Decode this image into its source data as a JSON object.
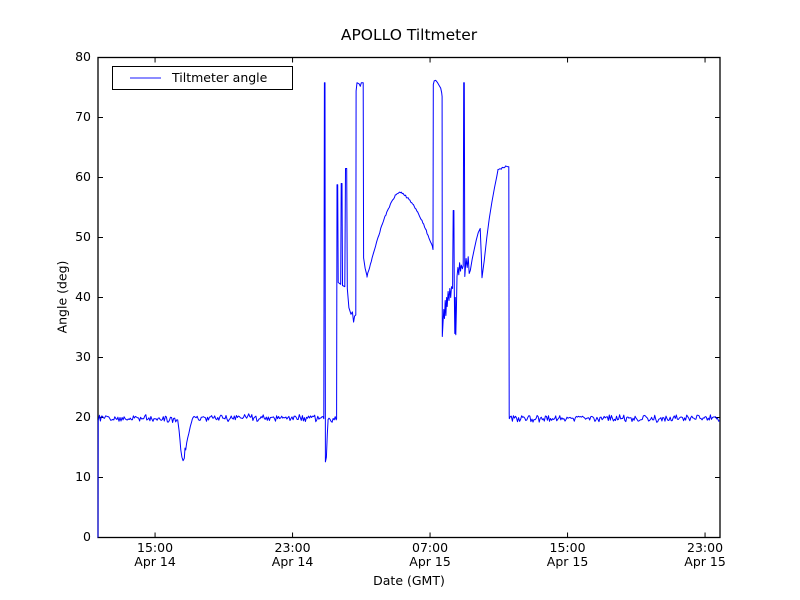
{
  "chart_data": {
    "type": "line",
    "title": "APOLLO Tiltmeter",
    "xlabel": "Date (GMT)",
    "ylabel": "Angle (deg)",
    "legend": {
      "label": "Tiltmeter angle",
      "position": "upper left"
    },
    "line_color": "#0000ff",
    "frame_color": "#000000",
    "background": "#ffffff",
    "grid": false,
    "x_unit": "hours since Apr 14 00:00 GMT",
    "xlim": [
      11.68,
      47.87
    ],
    "ylim": [
      0,
      80
    ],
    "yticks": {
      "values": [
        0,
        10,
        20,
        30,
        40,
        50,
        60,
        70,
        80
      ],
      "labels": [
        "0",
        "10",
        "20",
        "30",
        "40",
        "50",
        "60",
        "70",
        "80"
      ]
    },
    "xticks": {
      "values": [
        15,
        23,
        31,
        39,
        47
      ],
      "time_labels": [
        "15:00",
        "23:00",
        "07:00",
        "15:00",
        "23:00"
      ],
      "date_labels": [
        "Apr 14",
        "Apr 14",
        "Apr 15",
        "Apr 15",
        "Apr 15"
      ]
    },
    "noise_seed": 12,
    "series": [
      {
        "name": "Tiltmeter angle",
        "segments": [
          {
            "type": "line",
            "points": [
              [
                11.68,
                0.0
              ],
              [
                11.69,
                19.5
              ]
            ]
          },
          {
            "type": "noisy",
            "t0": 11.7,
            "t1": 16.32,
            "step": 0.06,
            "amp": 0.7,
            "anchors": [
              [
                11.7,
                20.0
              ],
              [
                14.0,
                19.9
              ],
              [
                16.32,
                19.8
              ]
            ]
          },
          {
            "type": "line",
            "points": [
              [
                16.32,
                19.6
              ],
              [
                16.4,
                17.8
              ],
              [
                16.45,
                16.2
              ],
              [
                16.5,
                14.6
              ],
              [
                16.56,
                13.4
              ],
              [
                16.63,
                12.8
              ],
              [
                16.7,
                13.2
              ],
              [
                16.74,
                14.9
              ],
              [
                16.78,
                14.6
              ],
              [
                16.84,
                15.8
              ],
              [
                16.9,
                16.6
              ],
              [
                16.97,
                17.4
              ],
              [
                17.05,
                18.5
              ],
              [
                17.15,
                19.5
              ]
            ]
          },
          {
            "type": "noisy",
            "t0": 17.15,
            "t1": 24.82,
            "step": 0.06,
            "amp": 0.7,
            "anchors": [
              [
                17.15,
                19.9
              ],
              [
                20.0,
                20.0
              ],
              [
                24.82,
                19.9
              ]
            ]
          },
          {
            "type": "line",
            "points": [
              [
                24.82,
                19.8
              ],
              [
                24.85,
                75.8
              ],
              [
                24.89,
                75.8
              ],
              [
                24.91,
                12.6
              ],
              [
                24.97,
                13.4
              ],
              [
                25.02,
                17.2
              ],
              [
                25.06,
                19.3
              ]
            ]
          },
          {
            "type": "noisy",
            "t0": 25.06,
            "t1": 25.56,
            "step": 0.06,
            "amp": 0.6,
            "anchors": [
              [
                25.06,
                19.6
              ],
              [
                25.56,
                19.7
              ]
            ]
          },
          {
            "type": "line",
            "points": [
              [
                25.56,
                19.8
              ],
              [
                25.585,
                58.8
              ],
              [
                25.625,
                58.8
              ],
              [
                25.655,
                42.5
              ],
              [
                25.8,
                42.2
              ],
              [
                25.83,
                59.0
              ],
              [
                25.875,
                59.0
              ],
              [
                25.905,
                42.0
              ],
              [
                26.04,
                41.8
              ],
              [
                26.08,
                61.5
              ],
              [
                26.15,
                61.5
              ],
              [
                26.185,
                41.5
              ],
              [
                26.28,
                38.3
              ],
              [
                26.4,
                37.2
              ],
              [
                26.48,
                37.6
              ],
              [
                26.55,
                35.9
              ],
              [
                26.61,
                36.9
              ],
              [
                26.68,
                37.1
              ],
              [
                26.7,
                74.4
              ],
              [
                26.75,
                75.8
              ],
              [
                26.88,
                75.6
              ],
              [
                26.94,
                75.2
              ],
              [
                27.0,
                75.8
              ],
              [
                27.11,
                75.8
              ],
              [
                27.135,
                46.6
              ],
              [
                27.22,
                44.9
              ],
              [
                27.33,
                43.6
              ]
            ]
          },
          {
            "type": "noisy",
            "t0": 27.33,
            "t1": 31.17,
            "step": 0.05,
            "amp": 0.22,
            "anchors": [
              [
                27.33,
                43.6
              ],
              [
                27.6,
                46.2
              ],
              [
                27.9,
                49.3
              ],
              [
                28.2,
                52.1
              ],
              [
                28.5,
                54.3
              ],
              [
                28.8,
                56.2
              ],
              [
                29.0,
                57.1
              ],
              [
                29.2,
                57.5
              ],
              [
                29.45,
                57.2
              ],
              [
                29.7,
                56.6
              ],
              [
                30.0,
                55.6
              ],
              [
                30.3,
                54.2
              ],
              [
                30.6,
                52.4
              ],
              [
                30.9,
                50.2
              ],
              [
                31.05,
                49.1
              ],
              [
                31.17,
                48.3
              ]
            ]
          },
          {
            "type": "line",
            "points": [
              [
                31.17,
                48.0
              ],
              [
                31.19,
                75.5
              ],
              [
                31.24,
                76.1
              ],
              [
                31.33,
                76.2
              ],
              [
                31.44,
                75.8
              ],
              [
                31.54,
                75.3
              ],
              [
                31.62,
                74.9
              ],
              [
                31.68,
                74.1
              ],
              [
                31.7,
                73.5
              ],
              [
                31.715,
                33.5
              ],
              [
                31.76,
                36.0
              ],
              [
                31.8,
                38.0
              ],
              [
                31.84,
                36.5
              ],
              [
                31.88,
                39.5
              ],
              [
                31.92,
                37.0
              ],
              [
                31.96,
                40.0
              ],
              [
                32.0,
                38.5
              ],
              [
                32.05,
                41.0
              ],
              [
                32.1,
                39.5
              ],
              [
                32.15,
                41.5
              ],
              [
                32.2,
                40.0
              ],
              [
                32.25,
                41.8
              ],
              [
                32.31,
                41.5
              ],
              [
                32.345,
                54.5
              ],
              [
                32.385,
                54.5
              ],
              [
                32.41,
                41.0
              ],
              [
                32.44,
                34.0
              ],
              [
                32.47,
                40.0
              ],
              [
                32.5,
                33.8
              ],
              [
                32.53,
                38.0
              ],
              [
                32.57,
                43.5
              ],
              [
                32.62,
                45.0
              ],
              [
                32.67,
                43.8
              ],
              [
                32.72,
                45.8
              ],
              [
                32.77,
                44.4
              ],
              [
                32.82,
                45.4
              ],
              [
                32.88,
                44.8
              ],
              [
                32.93,
                45.3
              ],
              [
                32.955,
                75.8
              ],
              [
                32.995,
                75.8
              ],
              [
                33.02,
                43.5
              ],
              [
                33.1,
                46.5
              ],
              [
                33.16,
                45.0
              ],
              [
                33.22,
                46.8
              ],
              [
                33.28,
                44.0
              ],
              [
                33.34,
                44.5
              ],
              [
                33.45,
                46.4
              ],
              [
                33.57,
                48.0
              ],
              [
                33.69,
                49.6
              ],
              [
                33.8,
                50.8
              ],
              [
                33.92,
                51.5
              ],
              [
                33.98,
                47.0
              ],
              [
                34.02,
                43.3
              ],
              [
                34.08,
                44.6
              ],
              [
                34.15,
                46.1
              ],
              [
                34.3,
                50.0
              ],
              [
                34.45,
                53.2
              ],
              [
                34.6,
                55.9
              ],
              [
                34.75,
                58.3
              ],
              [
                34.88,
                60.1
              ],
              [
                34.95,
                61.2
              ]
            ]
          },
          {
            "type": "noisy",
            "t0": 34.95,
            "t1": 35.58,
            "step": 0.05,
            "amp": 0.15,
            "anchors": [
              [
                34.95,
                61.4
              ],
              [
                35.25,
                61.6
              ],
              [
                35.45,
                61.9
              ],
              [
                35.58,
                61.8
              ]
            ]
          },
          {
            "type": "line",
            "points": [
              [
                35.58,
                61.8
              ],
              [
                35.605,
                20.6
              ]
            ]
          },
          {
            "type": "noisy",
            "t0": 35.61,
            "t1": 47.87,
            "step": 0.06,
            "amp": 0.7,
            "anchors": [
              [
                35.61,
                19.8
              ],
              [
                40.0,
                19.9
              ],
              [
                44.0,
                19.8
              ],
              [
                47.87,
                20.0
              ]
            ]
          }
        ]
      }
    ]
  }
}
